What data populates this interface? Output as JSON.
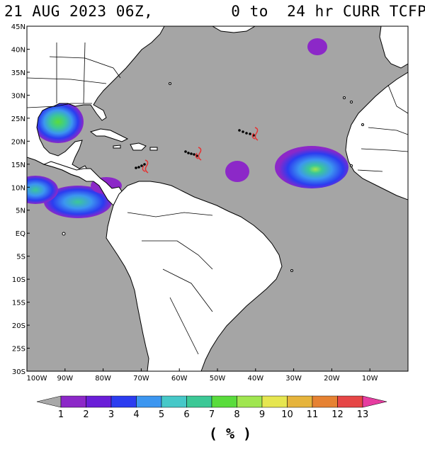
{
  "title": {
    "left": "21 AUG 2023 06Z,",
    "right": "  0 to  24 hr CURR TCFP"
  },
  "map": {
    "lat_labels": [
      "45N",
      "40N",
      "35N",
      "30N",
      "25N",
      "20N",
      "15N",
      "10N",
      "5N",
      "EQ",
      "5S",
      "10S",
      "15S",
      "20S",
      "25S",
      "30S"
    ],
    "lon_labels": [
      "100W",
      "90W",
      "80W",
      "70W",
      "60W",
      "50W",
      "40W",
      "30W",
      "20W",
      "10W"
    ],
    "ocean_color": "#a5a5a5",
    "land_color": "#ffffff"
  },
  "legend": {
    "labels": [
      "1",
      "2",
      "3",
      "4",
      "5",
      "6",
      "7",
      "8",
      "9",
      "10",
      "11",
      "12",
      "13"
    ],
    "colors": [
      "#a8a8a8",
      "#8c28c8",
      "#6a1ed8",
      "#2b3cf0",
      "#3c96f0",
      "#46c8c8",
      "#3cc896",
      "#5adc3c",
      "#a0e650",
      "#e6e650",
      "#e6b43c",
      "#e68232",
      "#e64646",
      "#e63ca0"
    ],
    "units": "( % )"
  }
}
